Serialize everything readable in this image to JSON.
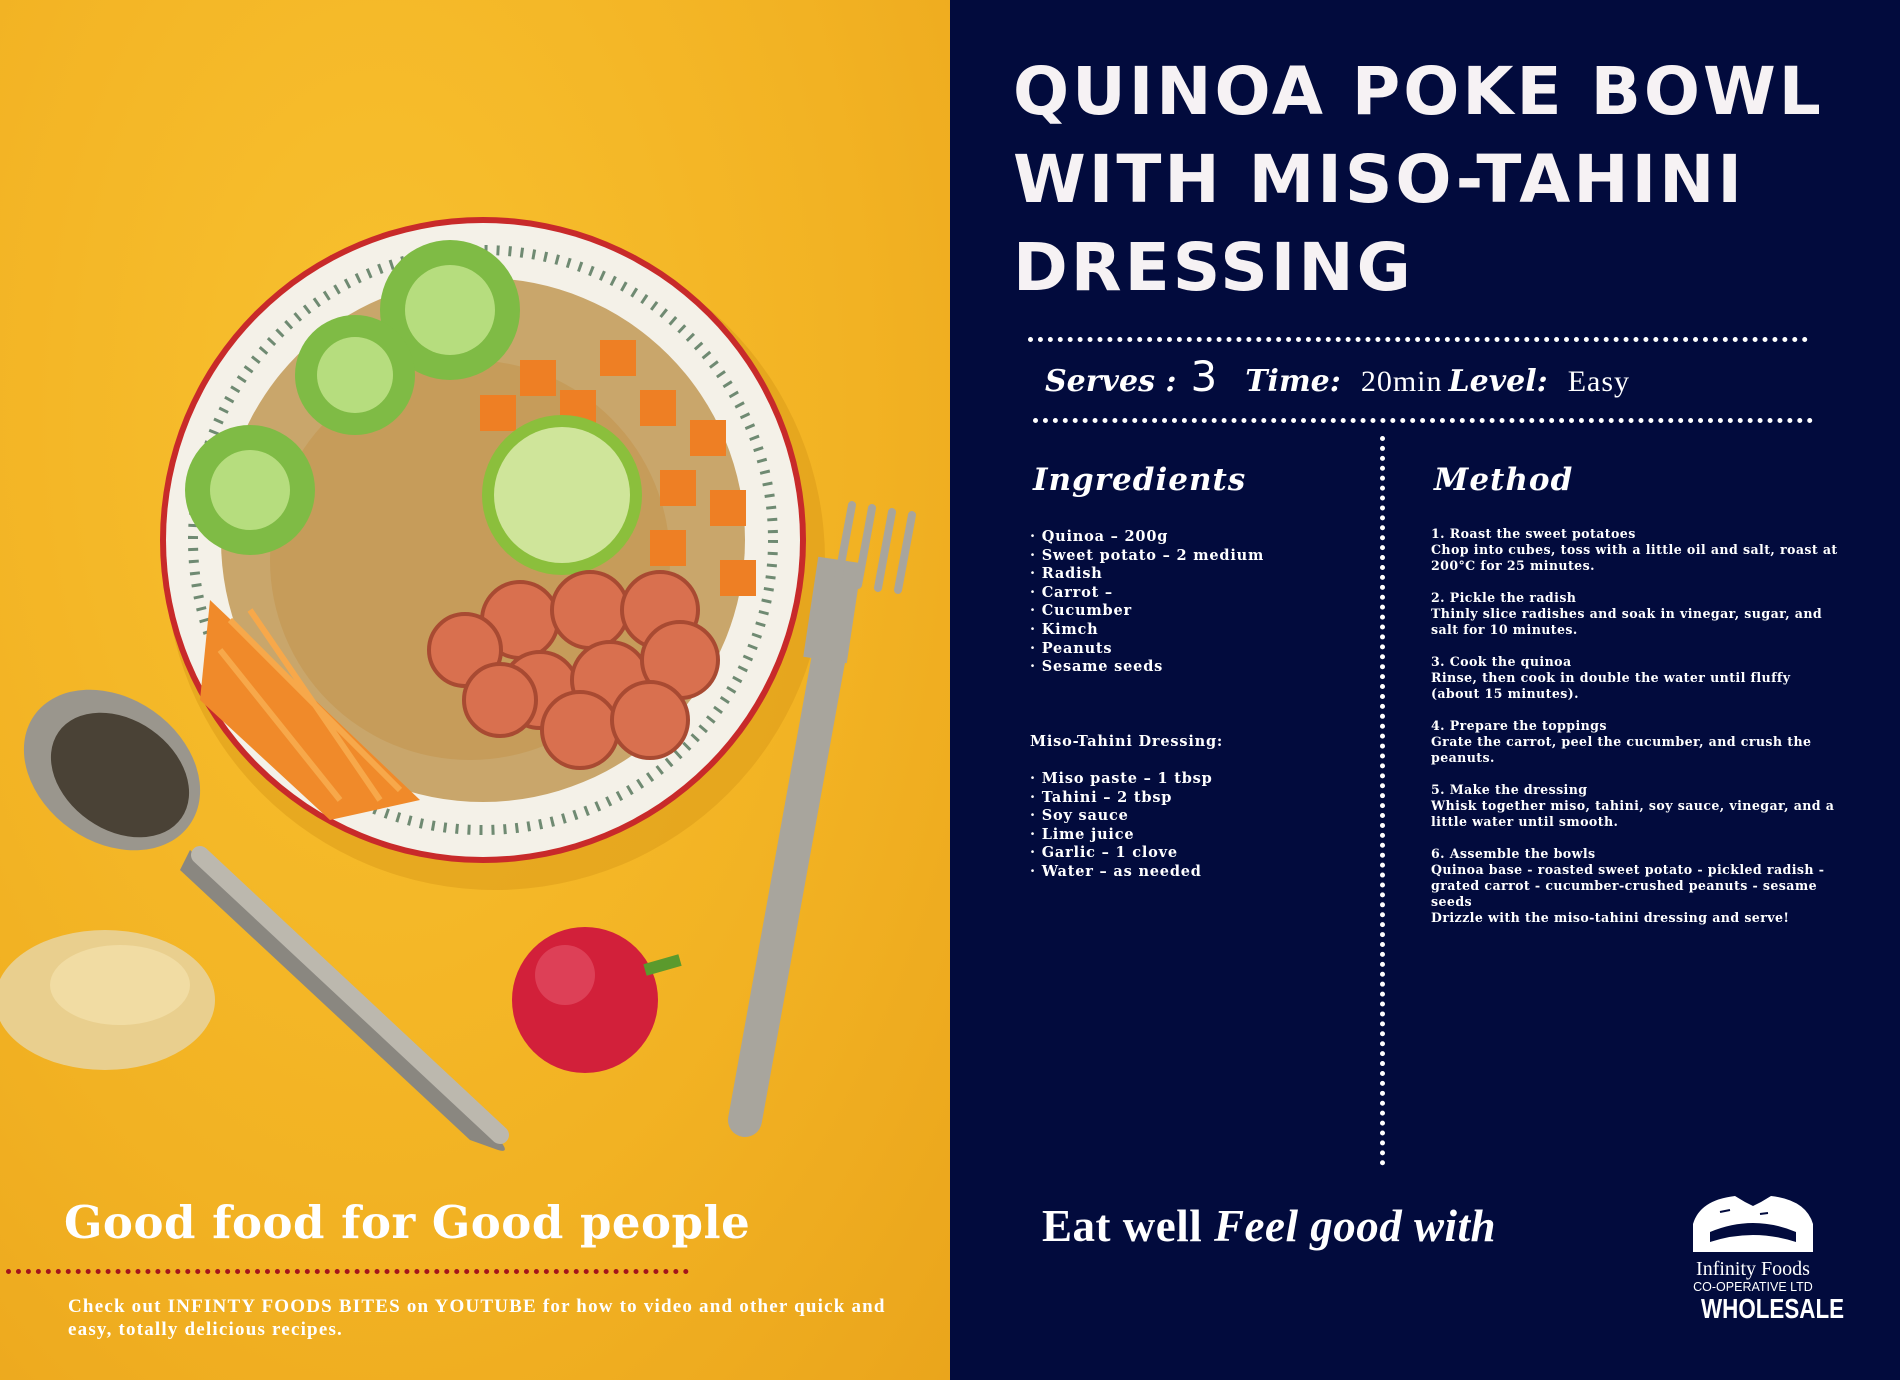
{
  "colors": {
    "left_bg": "#f4b525",
    "right_bg": "#020b3d",
    "text": "#ffffff",
    "dots_red": "#a3141b"
  },
  "recipe": {
    "title_lines": [
      "Quinoa Poke Bowl",
      "with Miso-Tahini",
      "Dressing"
    ],
    "serves_label": "Serves :",
    "serves_value": "3",
    "time_label": "Time:",
    "time_value": "20min",
    "level_label": "Level:",
    "level_value": "Easy"
  },
  "ingredients": {
    "heading": "Ingredients",
    "items": [
      "Quinoa – 200g",
      "Sweet potato – 2 medium",
      "Radish",
      "Carrot –",
      "Cucumber",
      "Kimch",
      "Peanuts",
      "Sesame seeds"
    ],
    "dressing_heading": "Miso-Tahini Dressing:",
    "dressing_items": [
      "Miso paste – 1 tbsp",
      "Tahini – 2 tbsp",
      "Soy sauce",
      "Lime juice",
      "Garlic – 1 clove",
      "Water – as needed"
    ]
  },
  "method": {
    "heading": "Method",
    "steps": [
      {
        "title": "1.  Roast the sweet potatoes",
        "text": "Chop into cubes, toss with a little oil and salt, roast at 200°C for 25 minutes."
      },
      {
        "title": "2.  Pickle the radish",
        "text": "Thinly slice radishes and soak in vinegar, sugar, and salt for 10 minutes."
      },
      {
        "title": "3.  Cook the quinoa",
        "text": "Rinse, then cook in double the water until fluffy (about 15 minutes)."
      },
      {
        "title": "4.  Prepare the toppings",
        "text": "Grate the carrot, peel the cucumber, and crush the peanuts."
      },
      {
        "title": "5.  Make the dressing",
        "text": "Whisk together miso, tahini, soy sauce, vinegar, and a little water until smooth."
      },
      {
        "title": "6.  Assemble the bowls",
        "text": "Quinoa base - roasted sweet potato - pickled radish - grated carrot - cucumber-crushed peanuts - sesame seeds",
        "extra": "Drizzle with the miso-tahini dressing and serve!"
      }
    ]
  },
  "footer": {
    "tagline_left": "Good food for Good people",
    "checkout": "Check out INFINTY FOODS BITES on YOUTUBE for how to video and other quick and easy, totally delicious recipes.",
    "eat_well": "Eat well",
    "feel_good": "Feel good with"
  },
  "logo": {
    "line1": "Infinity Foods",
    "line2": "CO-OPERATIVE LTD",
    "line3": "WHOLESALE"
  }
}
